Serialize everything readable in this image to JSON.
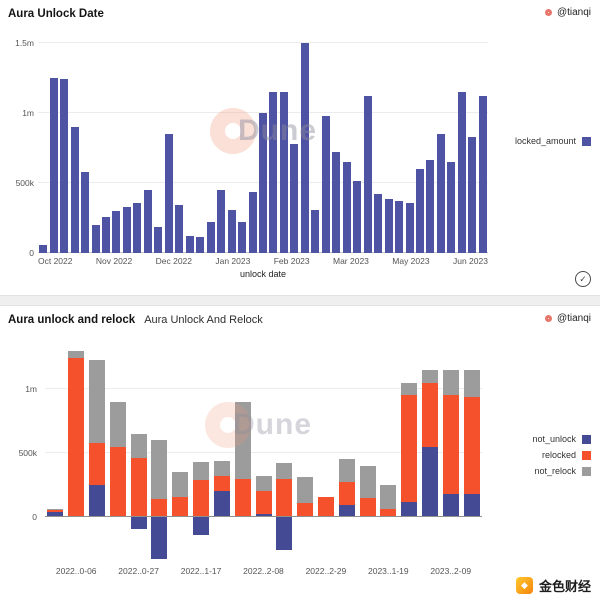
{
  "page": {
    "attribution": "@tianqi",
    "watermark": "Dune",
    "footer_badge": "金色财经"
  },
  "icons": {
    "verified_check": "✓",
    "golden_diamond": "◆"
  },
  "chart_data": [
    {
      "type": "bar",
      "title": "Aura Unlock Date",
      "xlabel": "unlock date",
      "ylabel": "",
      "grid": true,
      "legend_position": "right",
      "ylim_k": [
        0,
        1550
      ],
      "y_ticks_k": [
        0,
        500,
        1000,
        1500
      ],
      "y_tick_labels": [
        "0",
        "500k",
        "1m",
        "1.5m"
      ],
      "x_tick_labels": [
        "Oct 2022",
        "Nov 2022",
        "Dec 2022",
        "Jan 2023",
        "Feb 2023",
        "Mar 2023",
        "May 2023",
        "Jun 2023"
      ],
      "series": [
        {
          "name": "locked_amount",
          "color": "#4f53a4",
          "values_k": [
            60,
            1250,
            1240,
            900,
            580,
            200,
            255,
            300,
            330,
            355,
            450,
            185,
            850,
            345,
            120,
            115,
            225,
            450,
            310,
            225,
            435,
            1000,
            1150,
            1150,
            780,
            1500,
            305,
            980,
            720,
            650,
            515,
            1120,
            420,
            385,
            375,
            355,
            600,
            665,
            850,
            650,
            1150,
            830,
            1120
          ]
        }
      ]
    },
    {
      "type": "bar",
      "stacked": true,
      "title": "Aura unlock and relock",
      "subtitle": "Aura Unlock And Relock",
      "grid": true,
      "legend_position": "right",
      "ylim_k": [
        -350,
        1350
      ],
      "y_ticks_k": [
        0,
        500,
        1000
      ],
      "y_tick_labels": [
        "0",
        "500k",
        "1m"
      ],
      "categories": [
        "2022..0-06",
        "2022..0-27",
        "2022..1-17",
        "2022..2-08",
        "2022..2-29",
        "2023..1-19",
        "2023..2-09"
      ],
      "series": [
        {
          "name": "not_unlock",
          "color": "#454a94",
          "values_k": [
            40,
            0,
            250,
            0,
            -90,
            -330,
            0,
            -140,
            200,
            0,
            20,
            -260,
            0,
            0,
            90,
            0,
            0,
            120,
            550,
            180,
            180
          ]
        },
        {
          "name": "relocked",
          "color": "#f4512c",
          "values_k": [
            15,
            1240,
            330,
            550,
            460,
            140,
            160,
            290,
            120,
            300,
            180,
            300,
            110,
            160,
            180,
            150,
            60,
            830,
            500,
            770,
            760
          ]
        },
        {
          "name": "not_relock",
          "color": "#9c9c9c",
          "values_k": [
            10,
            60,
            650,
            350,
            190,
            460,
            190,
            140,
            120,
            600,
            120,
            120,
            200,
            0,
            180,
            250,
            190,
            100,
            100,
            200,
            210
          ]
        }
      ]
    }
  ]
}
